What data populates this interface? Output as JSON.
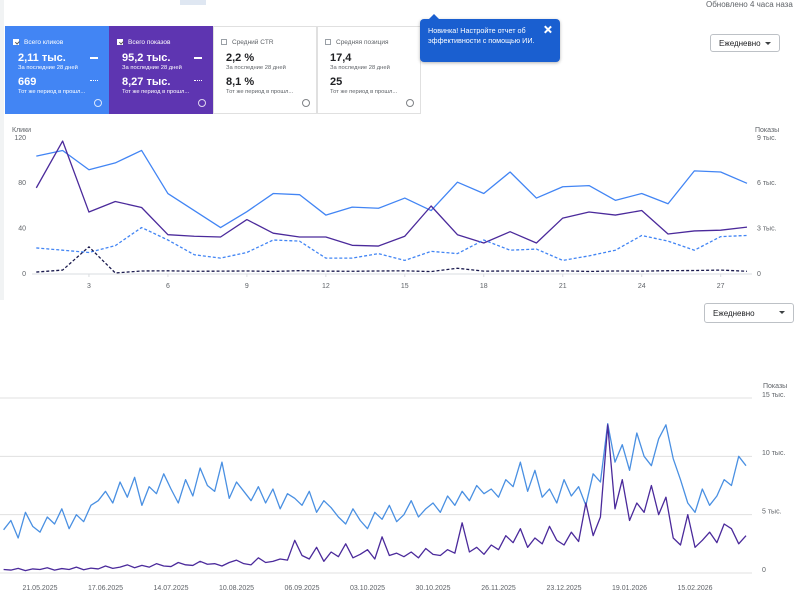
{
  "header": {
    "updated": "Обновлено 4 часа наза"
  },
  "cards": [
    {
      "label": "Всего кликов",
      "checked": true,
      "color": "#4285f4",
      "value": "2,11 тыс.",
      "period": "За последние 28 дней",
      "previous_value": "669",
      "previous_period": "Тот же период в прошл..."
    },
    {
      "label": "Всего показов",
      "checked": true,
      "color": "#5e35b1",
      "value": "95,2 тыс.",
      "period": "За последние 28 дней",
      "previous_value": "8,27 тыс.",
      "previous_period": "Тот же период в прошл..."
    },
    {
      "label": "Средний CTR",
      "checked": false,
      "value": "2,2 %",
      "period": "За последние 28 дней",
      "previous_value": "8,1 %",
      "previous_period": "Тот же период в прошл..."
    },
    {
      "label": "Средняя позиция",
      "checked": false,
      "value": "17,4",
      "period": "За последние 28 дней",
      "previous_value": "25",
      "previous_period": "Тот же период в прошл..."
    }
  ],
  "popup": {
    "text": "Новинка! Настройте отчет об эффективности с помощью ИИ."
  },
  "controls": [
    {
      "label": "Ежедневно"
    },
    {
      "label": "Ежедневно"
    }
  ],
  "chart_data": [
    {
      "type": "line",
      "y_label": "Клики",
      "y2_label": "Показы",
      "x": [
        1,
        2,
        3,
        4,
        5,
        6,
        7,
        8,
        9,
        10,
        11,
        12,
        13,
        14,
        15,
        16,
        17,
        18,
        19,
        20,
        21,
        22,
        23,
        24,
        25,
        26,
        27,
        28
      ],
      "xlim": [
        1,
        28
      ],
      "xticks": [
        3,
        6,
        9,
        12,
        15,
        18,
        21,
        24,
        27
      ],
      "ylim": [
        0,
        120
      ],
      "yticks": [
        0,
        40,
        80,
        120
      ],
      "y2lim": [
        0,
        9000
      ],
      "y2ticks": [
        0,
        {
          "value": 3000,
          "label": "3 тыс."
        },
        {
          "value": 6000,
          "label": "6 тыс."
        },
        {
          "value": 9000,
          "label": "9 тыс."
        }
      ],
      "grid": false,
      "series": [
        {
          "color": "#4285f4",
          "dashed": false,
          "values": [
            104,
            109,
            92,
            98,
            109,
            71,
            56,
            41,
            55,
            71,
            70,
            52,
            59,
            58,
            67,
            56,
            81,
            71,
            90,
            67,
            77,
            78,
            65,
            71,
            62,
            91,
            90,
            80
          ]
        },
        {
          "color": "#4b2a9b",
          "dashed": false,
          "axis": "y2",
          "values": [
            5700,
            8800,
            4100,
            4800,
            4400,
            2600,
            2500,
            2450,
            3600,
            2700,
            2450,
            2450,
            1900,
            1850,
            2500,
            4500,
            2600,
            2050,
            2800,
            2050,
            3700,
            4100,
            3900,
            4200,
            2650,
            2850,
            2900,
            3100
          ]
        },
        {
          "color": "#4285f4",
          "dashed": true,
          "values": [
            23,
            21,
            19,
            25,
            41,
            30,
            17,
            14,
            19,
            30,
            29,
            14,
            14,
            18,
            12,
            20,
            18,
            30,
            21,
            22,
            12,
            16,
            21,
            34,
            29,
            21,
            33,
            34
          ]
        },
        {
          "color": "#1a1a4e",
          "dashed": true,
          "axis": "y2",
          "values": [
            130,
            260,
            1800,
            70,
            200,
            210,
            180,
            190,
            200,
            170,
            220,
            190,
            180,
            200,
            210,
            160,
            380,
            190,
            200,
            180,
            210,
            170,
            200,
            190,
            220,
            230,
            260,
            180
          ]
        }
      ]
    },
    {
      "type": "line",
      "y2_label": "Показы",
      "categories": [
        null,
        null,
        null,
        null,
        null,
        "21.05.2025",
        null,
        null,
        null,
        null,
        null,
        null,
        null,
        null,
        "17.06.2025",
        null,
        null,
        null,
        null,
        null,
        null,
        null,
        null,
        "14.07.2025",
        null,
        null,
        null,
        null,
        null,
        null,
        null,
        null,
        "10.08.2025",
        null,
        null,
        null,
        null,
        null,
        null,
        null,
        null,
        "06.09.2025",
        null,
        null,
        null,
        null,
        null,
        null,
        null,
        null,
        "03.10.2025",
        null,
        null,
        null,
        null,
        null,
        null,
        null,
        null,
        "30.10.2025",
        null,
        null,
        null,
        null,
        null,
        null,
        null,
        null,
        "26.11.2025",
        null,
        null,
        null,
        null,
        null,
        null,
        null,
        null,
        "23.12.2025",
        null,
        null,
        null,
        null,
        null,
        null,
        null,
        null,
        "19.01.2026",
        null,
        null,
        null,
        null,
        null,
        null,
        null,
        null,
        "15.02.2026",
        null,
        null,
        null,
        null,
        null,
        null,
        null
      ],
      "ylim": [
        0,
        150
      ],
      "y2lim": [
        0,
        15000
      ],
      "y2ticks": [
        0,
        {
          "value": 5000,
          "label": "5 тыс."
        },
        {
          "value": 10000,
          "label": "10 тыс."
        },
        {
          "value": 15000,
          "label": "15 тыс."
        }
      ],
      "grid": true,
      "series": [
        {
          "color": "#4a90e2",
          "dashed": false,
          "values": [
            37,
            45,
            30,
            52,
            40,
            35,
            48,
            42,
            55,
            38,
            50,
            44,
            58,
            62,
            70,
            60,
            78,
            65,
            82,
            58,
            74,
            68,
            85,
            72,
            60,
            80,
            66,
            90,
            75,
            70,
            95,
            64,
            78,
            70,
            62,
            74,
            60,
            72,
            55,
            68,
            64,
            58,
            70,
            52,
            62,
            56,
            48,
            42,
            55,
            45,
            38,
            52,
            46,
            58,
            44,
            50,
            62,
            48,
            55,
            60,
            52,
            66,
            58,
            70,
            62,
            75,
            68,
            72,
            65,
            80,
            74,
            95,
            70,
            88,
            65,
            72,
            60,
            80,
            66,
            74,
            58,
            85,
            78,
            128,
            95,
            110,
            88,
            120,
            100,
            92,
            115,
            127,
            98,
            80,
            60,
            52,
            72,
            58,
            66,
            80,
            75,
            100,
            92
          ]
        },
        {
          "color": "#4b2a9b",
          "dashed": false,
          "axis": "y2",
          "values": [
            300,
            250,
            400,
            200,
            350,
            300,
            450,
            250,
            380,
            300,
            500,
            280,
            420,
            350,
            600,
            400,
            500,
            700,
            450,
            650,
            500,
            800,
            600,
            550,
            900,
            700,
            650,
            1000,
            750,
            800,
            600,
            900,
            1100,
            800,
            700,
            1300,
            900,
            1000,
            1200,
            1100,
            2800,
            1500,
            1200,
            2200,
            1000,
            1800,
            1400,
            2500,
            1300,
            1600,
            2000,
            1200,
            3100,
            1500,
            1700,
            1400,
            1800,
            1300,
            2100,
            1600,
            1500,
            2000,
            1700,
            4300,
            1800,
            2200,
            1600,
            2400,
            2000,
            3200,
            2600,
            3800,
            2200,
            3000,
            2500,
            4000,
            2800,
            2400,
            3500,
            2700,
            6000,
            3200,
            4800,
            12700,
            5500,
            8000,
            4500,
            6000,
            5200,
            7500,
            5000,
            6500,
            3000,
            2400,
            5000,
            2200,
            2800,
            3500,
            2600,
            4200,
            3800,
            2500,
            3200
          ]
        }
      ]
    }
  ]
}
